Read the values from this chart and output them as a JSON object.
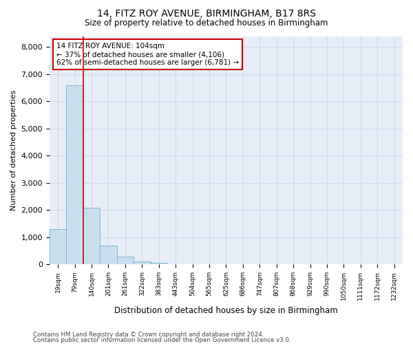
{
  "title1": "14, FITZ ROY AVENUE, BIRMINGHAM, B17 8RS",
  "title2": "Size of property relative to detached houses in Birmingham",
  "xlabel": "Distribution of detached houses by size in Birmingham",
  "ylabel": "Number of detached properties",
  "bin_labels": [
    "19sqm",
    "79sqm",
    "140sqm",
    "201sqm",
    "261sqm",
    "322sqm",
    "383sqm",
    "443sqm",
    "504sqm",
    "565sqm",
    "625sqm",
    "686sqm",
    "747sqm",
    "807sqm",
    "868sqm",
    "929sqm",
    "990sqm",
    "1050sqm",
    "1111sqm",
    "1172sqm",
    "1232sqm"
  ],
  "bin_values": [
    1300,
    6600,
    2080,
    700,
    290,
    120,
    65,
    0,
    0,
    0,
    0,
    0,
    0,
    0,
    0,
    0,
    0,
    0,
    0,
    0,
    0
  ],
  "bar_color": "#c8dff0",
  "bar_edge_color": "#7fb4d4",
  "vline_color": "#cc0000",
  "annotation_text": "14 FITZ ROY AVENUE: 104sqm\n← 37% of detached houses are smaller (4,106)\n62% of semi-detached houses are larger (6,781) →",
  "annotation_box_color": "#ffffff",
  "annotation_box_edge": "#cc0000",
  "grid_color": "#cdd8ec",
  "background_color": "#e8eef8",
  "footer1": "Contains HM Land Registry data © Crown copyright and database right 2024.",
  "footer2": "Contains public sector information licensed under the Open Government Licence v3.0.",
  "ylim": [
    0,
    8400
  ],
  "yticks": [
    0,
    1000,
    2000,
    3000,
    4000,
    5000,
    6000,
    7000,
    8000
  ]
}
